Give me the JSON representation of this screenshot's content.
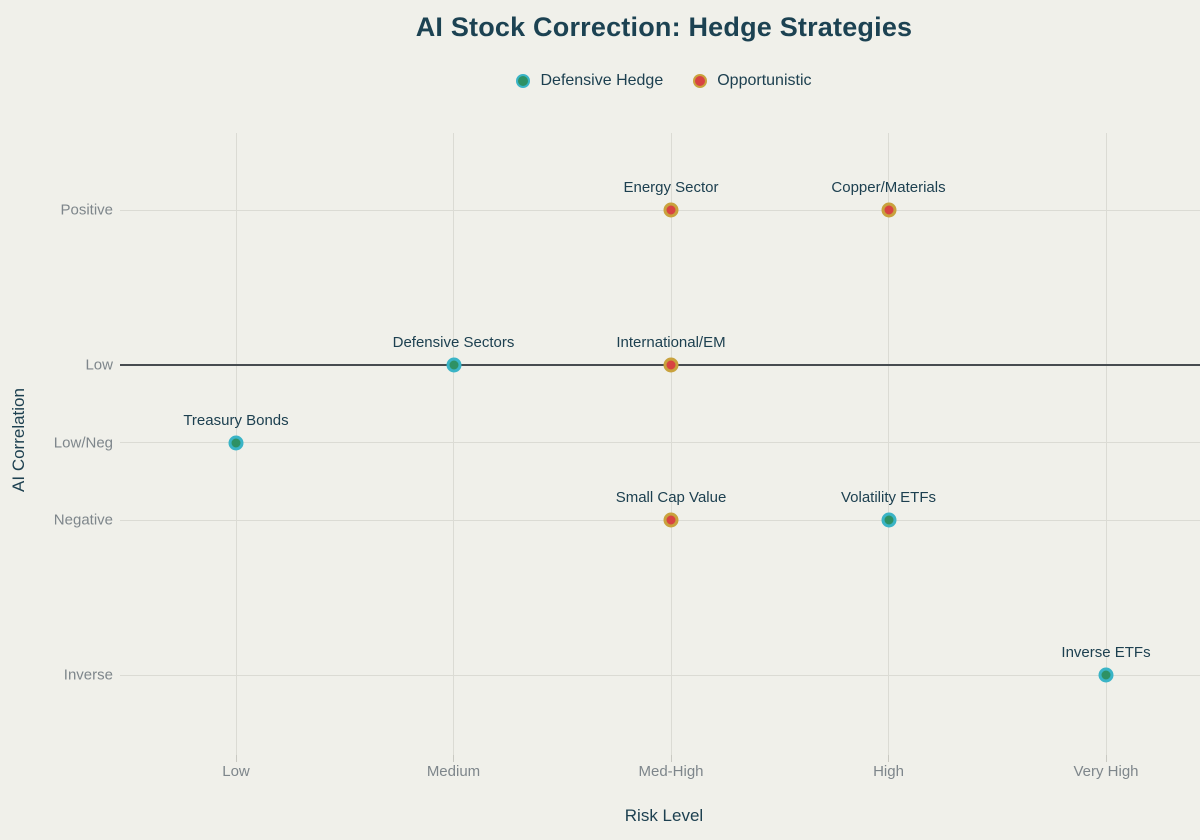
{
  "title": "AI Stock Correction: Hedge Strategies",
  "legend": [
    {
      "label": "Defensive Hedge",
      "fill": "#2e9164",
      "stroke": "#3ab4c6"
    },
    {
      "label": "Opportunistic",
      "fill": "#d84342",
      "stroke": "#c9a23d"
    }
  ],
  "colors": {
    "background": "#f0f0ea",
    "title_text": "#1c4252",
    "tick_text": "#7e868b",
    "grid": "#dbdbd4",
    "zero_line": "#474c50"
  },
  "chart_data": {
    "type": "scatter",
    "title": "AI Stock Correction: Hedge Strategies",
    "xlabel": "Risk Level",
    "ylabel": "AI Correlation",
    "x_categories": [
      "Low",
      "Medium",
      "Med-High",
      "High",
      "Very High"
    ],
    "y_ticks": [
      {
        "label": "Positive",
        "value": 0.4
      },
      {
        "label": "Low",
        "value": 0.0
      },
      {
        "label": "Low/Neg",
        "value": -0.2
      },
      {
        "label": "Negative",
        "value": -0.4
      },
      {
        "label": "Inverse",
        "value": -0.8
      }
    ],
    "ylim": [
      -1.0,
      0.6
    ],
    "zero_line_at": 0.0,
    "grid": true,
    "legend_position": "top-center",
    "series": [
      {
        "name": "Defensive Hedge",
        "fill": "#2e9164",
        "stroke": "#3ab4c6",
        "points": [
          {
            "label": "Treasury Bonds",
            "x": "Low",
            "y": -0.2
          },
          {
            "label": "Defensive Sectors",
            "x": "Medium",
            "y": 0.0
          },
          {
            "label": "Volatility ETFs",
            "x": "High",
            "y": -0.4
          },
          {
            "label": "Inverse ETFs",
            "x": "Very High",
            "y": -0.8
          }
        ]
      },
      {
        "name": "Opportunistic",
        "fill": "#d84342",
        "stroke": "#c9a23d",
        "points": [
          {
            "label": "Energy Sector",
            "x": "Med-High",
            "y": 0.4
          },
          {
            "label": "Copper/Materials",
            "x": "High",
            "y": 0.4
          },
          {
            "label": "International/EM",
            "x": "Med-High",
            "y": 0.0
          },
          {
            "label": "Small Cap Value",
            "x": "Med-High",
            "y": -0.4
          }
        ]
      }
    ]
  }
}
